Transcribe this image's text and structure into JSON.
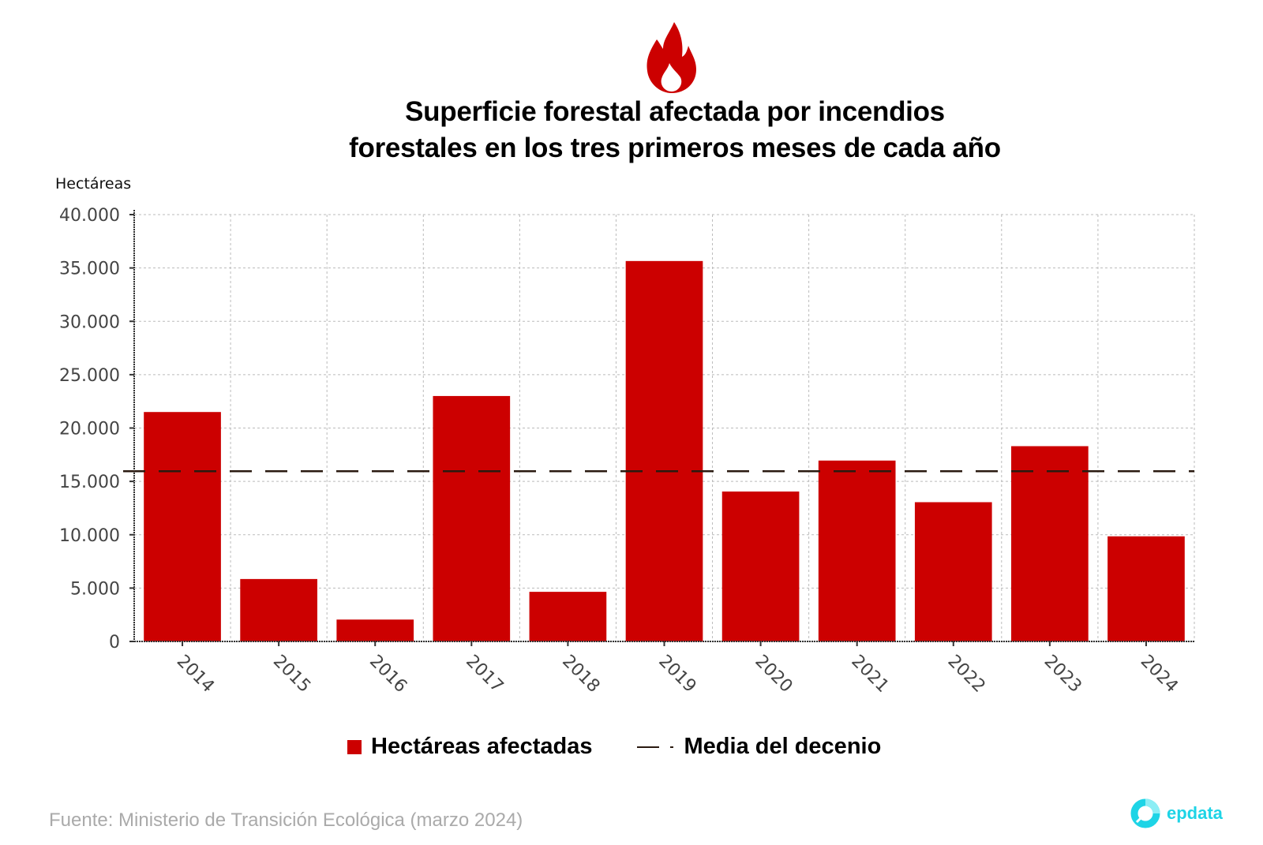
{
  "header": {
    "icon": "flame-icon",
    "title_line1": "Superficie forestal afectada por incendios",
    "title_line2": "forestales en los tres primeros meses de cada año"
  },
  "chart_data": {
    "type": "bar",
    "title": "Superficie forestal afectada por incendios forestales en los tres primeros meses de cada año",
    "ylabel": "Hectáreas",
    "xlabel": "",
    "categories": [
      "2014",
      "2015",
      "2016",
      "2017",
      "2018",
      "2019",
      "2020",
      "2021",
      "2022",
      "2023",
      "2024"
    ],
    "series": [
      {
        "name": "Hectáreas afectadas",
        "color": "#cc0000",
        "values": [
          21500,
          5850,
          2050,
          23000,
          4650,
          35650,
          14050,
          16950,
          13050,
          18300,
          9850
        ]
      }
    ],
    "reference_lines": [
      {
        "name": "Media del decenio",
        "value": 15950,
        "style": "dashed",
        "color": "#2a1a10"
      }
    ],
    "ylim": [
      0,
      40000
    ],
    "yticks": [
      0,
      5000,
      10000,
      15000,
      20000,
      25000,
      30000,
      35000,
      40000
    ],
    "ytick_labels": [
      "0",
      "5.000",
      "10.000",
      "15.000",
      "20.000",
      "25.000",
      "30.000",
      "35.000",
      "40.000"
    ],
    "grid": true,
    "legend_position": "bottom"
  },
  "legend": {
    "bars_label": "Hectáreas afectadas",
    "line_label": "Media del decenio"
  },
  "footer": {
    "source": "Fuente: Ministerio de Transición Ecológica (marzo 2024)",
    "logo_text": "epdata",
    "logo_color": "#1ed4e6"
  }
}
